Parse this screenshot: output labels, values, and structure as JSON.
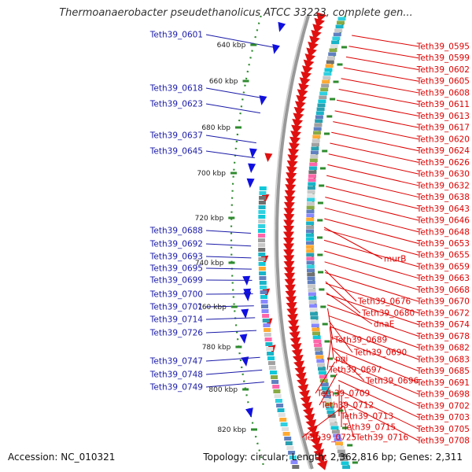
{
  "title": "Thermoanaerobacter pseudethanolicus ATCC 33223, complete gen...",
  "accession_text": "Accession: NC_010321",
  "summary_text": "Topology: circular; Length: 2,362,816 bp; Genes: 2,311",
  "colors": {
    "left_label": "#1a1aa8",
    "right_label": "#dd0000",
    "ring": "#999999",
    "tick": "#2e8b2e",
    "fwd_arrow": "#e01010",
    "rev_arrow": "#1010e0"
  },
  "kbp_labels": [
    "640 kbp",
    "660 kbp",
    "680 kbp",
    "700 kbp",
    "720 kbp",
    "740 kbp",
    "760 kbp",
    "780 kbp",
    "800 kbp",
    "820 kbp"
  ],
  "left_labels": [
    "Teth39_0601",
    "Teth39_0618",
    "Teth39_0623",
    "Teth39_0637",
    "Teth39_0645",
    "Teth39_0688",
    "Teth39_0692",
    "Teth39_0693",
    "Teth39_0695",
    "Teth39_0699",
    "Teth39_0700",
    "Teth39_0701",
    "Teth39_0714",
    "Teth39_0726",
    "Teth39_0747",
    "Teth39_0748",
    "Teth39_0749"
  ],
  "right_labels": [
    "Teth39_0595",
    "Teth39_0599",
    "Teth39_0602",
    "Teth39_0605",
    "Teth39_0608",
    "Teth39_0611",
    "Teth39_0613",
    "Teth39_0617",
    "Teth39_0620",
    "Teth39_0624",
    "Teth39_0626",
    "Teth39_0630",
    "Teth39_0632",
    "Teth39_0638",
    "Teth39_0643",
    "Teth39_0646",
    "Teth39_0648",
    "Teth39_0653",
    "Teth39_0655",
    "Teth39_0659",
    "Teth39_0663",
    "Teth39_0668",
    "Teth39_0670",
    "Teth39_0672",
    "Teth39_0674",
    "Teth39_0678",
    "Teth39_0682",
    "Teth39_0683",
    "Teth39_0685",
    "Teth39_0691",
    "Teth39_0698",
    "Teth39_0702",
    "Teth39_0703",
    "Teth39_0705",
    "Teth39_0708"
  ],
  "inner_labels": [
    "murB",
    "Teth39_0676",
    "Teth39_0680",
    "dnaE",
    "Teth39_0689",
    "Teth39_0690",
    "pgi",
    "Teth39_0697",
    "Teth39_0696",
    "Teth39_0709",
    "Teth39_0712",
    "Teth39_0713",
    "Teth39_0715",
    "Teth39_0725",
    "Teth39_0716"
  ]
}
